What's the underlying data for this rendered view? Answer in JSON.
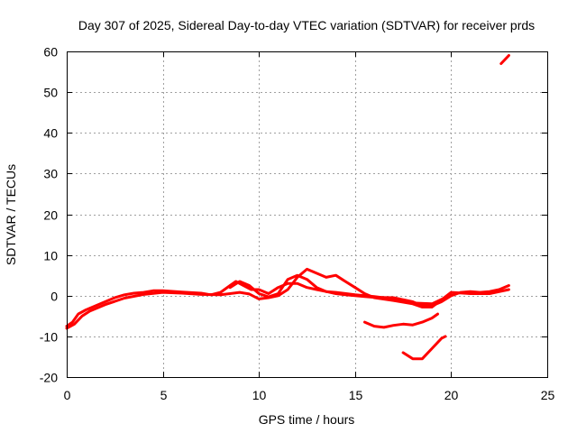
{
  "chart_data": {
    "type": "line",
    "title": "Day 307 of 2025, Sidereal Day-to-day VTEC variation (SDTVAR) for receiver prds",
    "xlabel": "GPS time / hours",
    "ylabel": "SDTVAR / TECUs",
    "xlim": [
      0,
      25
    ],
    "ylim": [
      -20,
      60
    ],
    "xticks": [
      0,
      5,
      10,
      15,
      20,
      25
    ],
    "yticks": [
      -20,
      -10,
      0,
      10,
      20,
      30,
      40,
      50,
      60
    ],
    "xtick_labels": [
      "0",
      "5",
      "10",
      "15",
      "20",
      "25"
    ],
    "ytick_labels": [
      "-20",
      "-10",
      "0",
      "10",
      "20",
      "30",
      "40",
      "50",
      "60"
    ],
    "grid": true,
    "color": "#ff0000",
    "series": [
      {
        "name": "track-1",
        "points": [
          [
            0,
            -7.5
          ],
          [
            0.3,
            -6.5
          ],
          [
            0.6,
            -4.5
          ],
          [
            1,
            -3.5
          ],
          [
            1.5,
            -2.5
          ],
          [
            2,
            -1.5
          ],
          [
            2.5,
            -0.5
          ],
          [
            3,
            0.2
          ],
          [
            3.5,
            0.6
          ],
          [
            4,
            0.8
          ],
          [
            4.5,
            1.2
          ],
          [
            5,
            1.2
          ],
          [
            6,
            0.9
          ],
          [
            7,
            0.6
          ],
          [
            7.5,
            0.2
          ],
          [
            8,
            0.8
          ],
          [
            8.5,
            2.5
          ],
          [
            8.8,
            3.5
          ],
          [
            9.2,
            2.5
          ],
          [
            9.6,
            1.5
          ],
          [
            10,
            1.5
          ],
          [
            10.5,
            0.5
          ],
          [
            11,
            2
          ],
          [
            11.5,
            3
          ],
          [
            12,
            3
          ],
          [
            12.5,
            2
          ],
          [
            13,
            1.5
          ],
          [
            13.5,
            1
          ],
          [
            14,
            0.5
          ],
          [
            14.5,
            0.2
          ],
          [
            15,
            0
          ],
          [
            15.5,
            -0.2
          ],
          [
            16,
            -0.4
          ],
          [
            17,
            -0.5
          ],
          [
            18,
            -1.5
          ],
          [
            18.5,
            -2.5
          ],
          [
            19,
            -2.5
          ],
          [
            19.5,
            -1.5
          ],
          [
            20,
            0
          ],
          [
            20.5,
            0.8
          ],
          [
            21,
            1
          ],
          [
            21.5,
            0.8
          ],
          [
            22,
            1
          ],
          [
            22.5,
            1.5
          ],
          [
            23,
            2.5
          ]
        ]
      },
      {
        "name": "track-2",
        "points": [
          [
            0,
            -8
          ],
          [
            0.4,
            -7
          ],
          [
            0.8,
            -5
          ],
          [
            1.2,
            -3.8
          ],
          [
            2,
            -2.2
          ],
          [
            3,
            -0.6
          ],
          [
            4,
            0.3
          ],
          [
            5,
            0.8
          ],
          [
            6,
            0.6
          ],
          [
            7,
            0.3
          ],
          [
            8,
            0.2
          ],
          [
            9,
            0.8
          ],
          [
            9.5,
            0.4
          ],
          [
            10,
            -0.8
          ],
          [
            10.5,
            -0.5
          ],
          [
            11,
            0
          ],
          [
            11.5,
            1.5
          ],
          [
            12,
            4.5
          ],
          [
            12.5,
            6.5
          ],
          [
            13,
            5.5
          ],
          [
            13.5,
            4.5
          ],
          [
            14,
            5
          ],
          [
            14.5,
            3.5
          ],
          [
            15,
            2
          ],
          [
            15.5,
            0.5
          ],
          [
            16,
            -0.5
          ],
          [
            17,
            -1.2
          ],
          [
            18,
            -2
          ],
          [
            18.5,
            -2.8
          ],
          [
            19,
            -2.8
          ],
          [
            19.5,
            -1
          ],
          [
            20,
            0.8
          ],
          [
            21,
            0.5
          ],
          [
            22,
            0.5
          ],
          [
            23,
            1.5
          ]
        ]
      },
      {
        "name": "track-3",
        "points": [
          [
            8.5,
            2
          ],
          [
            9,
            3.5
          ],
          [
            9.5,
            2.5
          ],
          [
            10,
            0.5
          ],
          [
            10.5,
            -0.3
          ],
          [
            11,
            0.5
          ],
          [
            11.5,
            4
          ],
          [
            12,
            5
          ],
          [
            12.5,
            4
          ],
          [
            13,
            2
          ],
          [
            13.5,
            1
          ],
          [
            14,
            0.8
          ],
          [
            15,
            0.2
          ],
          [
            16,
            -0.2
          ],
          [
            17,
            -0.8
          ],
          [
            18,
            -1.8
          ],
          [
            19,
            -2
          ],
          [
            20,
            0.2
          ]
        ]
      },
      {
        "name": "track-4",
        "points": [
          [
            15.5,
            -6.5
          ],
          [
            16,
            -7.5
          ],
          [
            16.5,
            -7.8
          ],
          [
            17,
            -7.3
          ],
          [
            17.5,
            -7
          ],
          [
            18,
            -7.2
          ],
          [
            18.5,
            -6.5
          ],
          [
            19,
            -5.5
          ],
          [
            19.3,
            -4.5
          ]
        ]
      },
      {
        "name": "track-5",
        "points": [
          [
            17.5,
            -14
          ],
          [
            18,
            -15.5
          ],
          [
            18.5,
            -15.5
          ],
          [
            19,
            -13
          ],
          [
            19.5,
            -10.5
          ],
          [
            19.7,
            -10
          ]
        ]
      },
      {
        "name": "track-6",
        "points": [
          [
            22.6,
            57
          ],
          [
            22.8,
            58
          ],
          [
            23,
            59
          ]
        ]
      }
    ]
  }
}
